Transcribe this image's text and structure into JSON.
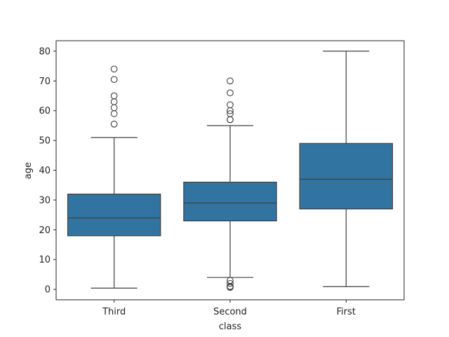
{
  "chart_data": {
    "type": "box",
    "xlabel": "class",
    "ylabel": "age",
    "ylim": [
      -3.5,
      83.5
    ],
    "yticks": [
      0,
      10,
      20,
      30,
      40,
      50,
      60,
      70,
      80
    ],
    "categories": [
      "Third",
      "Second",
      "First"
    ],
    "box_color": "#3274a1",
    "line_color": "#3f3f3f",
    "grid": false,
    "boxes": [
      {
        "category": "Third",
        "whisker_low": 0.42,
        "q1": 18,
        "median": 24,
        "q3": 32,
        "whisker_high": 51,
        "outliers": [
          55.5,
          59,
          61,
          63,
          65,
          70.5,
          74
        ]
      },
      {
        "category": "Second",
        "whisker_low": 4,
        "q1": 23,
        "median": 29,
        "q3": 36,
        "whisker_high": 55,
        "outliers": [
          0.67,
          0.83,
          1,
          2,
          3,
          57,
          57,
          59,
          60,
          62,
          66,
          70
        ]
      },
      {
        "category": "First",
        "whisker_low": 0.92,
        "q1": 27,
        "median": 37,
        "q3": 49,
        "whisker_high": 80,
        "outliers": []
      }
    ]
  }
}
